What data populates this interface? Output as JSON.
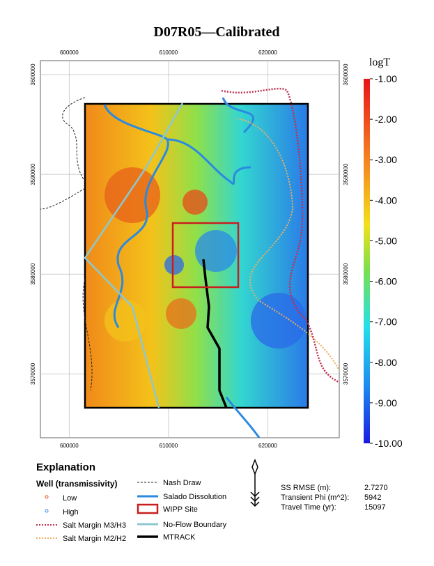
{
  "title": "D07R05—Calibrated",
  "map": {
    "xlim": [
      597100,
      627200
    ],
    "ylim": [
      3563600,
      3601400
    ],
    "xticks": [
      600000,
      610000,
      620000
    ],
    "yticks": [
      3570000,
      3580000,
      3590000,
      3600000
    ]
  },
  "colorbar": {
    "label": "logT",
    "lim": [
      -10,
      -1
    ],
    "ticks": [
      {
        "value": -1,
        "label": "-1.00"
      },
      {
        "value": -2,
        "label": "-2.00"
      },
      {
        "value": -3,
        "label": "-3.00"
      },
      {
        "value": -4,
        "label": "-4.00"
      },
      {
        "value": -5,
        "label": "-5.00"
      },
      {
        "value": -6,
        "label": "-6.00"
      },
      {
        "value": -7,
        "label": "-7.00"
      },
      {
        "value": -8,
        "label": "-8.00"
      },
      {
        "value": -9,
        "label": "-9.00"
      },
      {
        "value": -10,
        "label": "-10.00"
      }
    ]
  },
  "legend": {
    "title": "Explanation",
    "wells_title": "Well (transmissivity)",
    "items": [
      "Low",
      "High",
      "Salt Margin M3/H3",
      "Salt Margin M2/H2",
      "Nash Draw",
      "Salado Dissolution",
      "WIPP Site",
      "No-Flow Boundary",
      "MTRACK"
    ]
  },
  "stats": [
    [
      "SS RMSE (m):",
      "2.7270"
    ],
    [
      "Transient Phi (m^2):",
      "5942"
    ],
    [
      "Travel Time (yr):",
      "15097"
    ]
  ]
}
